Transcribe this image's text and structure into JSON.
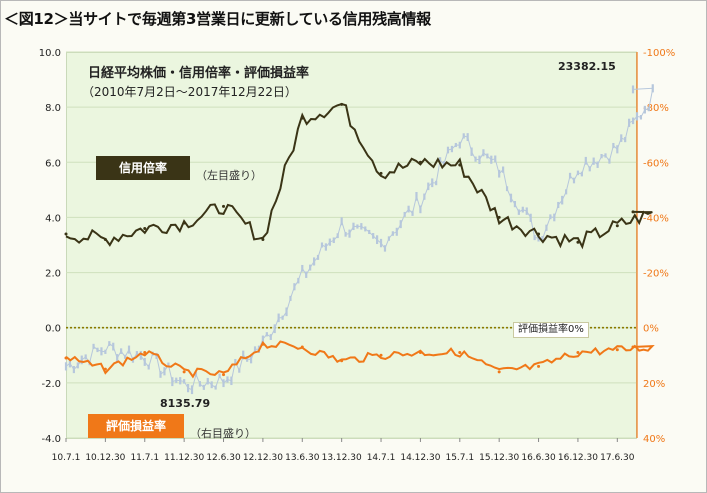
{
  "header": "＜図12＞当サイトで毎週第3営業日に更新している信用残高情報",
  "chart": {
    "title": "日経平均株価・信用倍率・評価損益率",
    "subtitle": "（2010年7月2日〜2017年12月22日）",
    "peak_label": "23382.15",
    "low_label": "8135.79",
    "zero_line_label": "評価損益率0%",
    "tag_margin_ratio": "信用倍率",
    "tag_margin_ratio_note": "（左目盛り）",
    "tag_valuation": "評価損益率",
    "tag_valuation_note": "（右目盛り）"
  },
  "colors": {
    "margin_ratio": "#3a3416",
    "valuation": "#f07818",
    "nikkei": "#b6c7dc",
    "plot_bg": "#ebf6df",
    "right_axis": "#f07818"
  },
  "chart_data": {
    "type": "line",
    "x_ticks": [
      "10.7.1",
      "10.12.30",
      "11.7.1",
      "11.12.30",
      "12.6.30",
      "12.12.30",
      "13.6.30",
      "13.12.30",
      "14.7.1",
      "14.12.30",
      "15.7.1",
      "15.12.30",
      "16.6.30",
      "16.12.30",
      "17.6.30"
    ],
    "y_left": {
      "ticks": [
        "10.0",
        "8.0",
        "6.0",
        "4.0",
        "2.0",
        "0.0",
        "-2.0",
        "-4.0"
      ],
      "ylim": [
        -4,
        10
      ]
    },
    "y_right": {
      "ticks": [
        "-100%",
        "-80%",
        "-60%",
        "-40%",
        "-20%",
        "0%",
        "20%",
        "40%"
      ],
      "ylim": [
        40,
        -100
      ]
    },
    "series": [
      {
        "name": "信用倍率",
        "axis": "left",
        "x": [
          "10.7.1",
          "10.12.30",
          "11.7.1",
          "11.12.30",
          "12.6.30",
          "12.12.30",
          "13.6.30",
          "13.12.30",
          "14.7.1",
          "14.12.30",
          "15.7.1",
          "15.12.30",
          "16.6.30",
          "16.12.30",
          "17.6.30",
          "17.12.22"
        ],
        "values": [
          3.4,
          3.2,
          3.6,
          3.8,
          4.4,
          3.2,
          7.6,
          8.1,
          5.6,
          6.0,
          5.9,
          4.0,
          3.4,
          3.1,
          3.7,
          4.2
        ]
      },
      {
        "name": "評価損益率",
        "axis": "right",
        "x": [
          "10.7.1",
          "10.12.30",
          "11.7.1",
          "11.12.30",
          "12.6.30",
          "12.12.30",
          "13.6.30",
          "13.12.30",
          "14.7.1",
          "14.12.30",
          "15.7.1",
          "15.12.30",
          "16.6.30",
          "16.12.30",
          "17.6.30",
          "17.12.22"
        ],
        "values": [
          11,
          15,
          9,
          16,
          17,
          6,
          7,
          12,
          10,
          9,
          9,
          16,
          14,
          9,
          8,
          7
        ]
      },
      {
        "axis": "nikkei",
        "x": [
          "10.7.1",
          "10.12.30",
          "11.7.1",
          "11.12.30",
          "12.6.30",
          "12.12.30",
          "13.6.30",
          "13.12.30",
          "14.7.1",
          "14.12.30",
          "15.7.1",
          "15.12.30",
          "16.6.30",
          "16.12.30",
          "17.6.30",
          "17.12.22"
        ],
        "values": [
          9300,
          10200,
          9800,
          8400,
          8600,
          10400,
          13700,
          16200,
          15300,
          17450,
          20500,
          19000,
          15600,
          19100,
          20000,
          22900
        ]
      }
    ]
  }
}
